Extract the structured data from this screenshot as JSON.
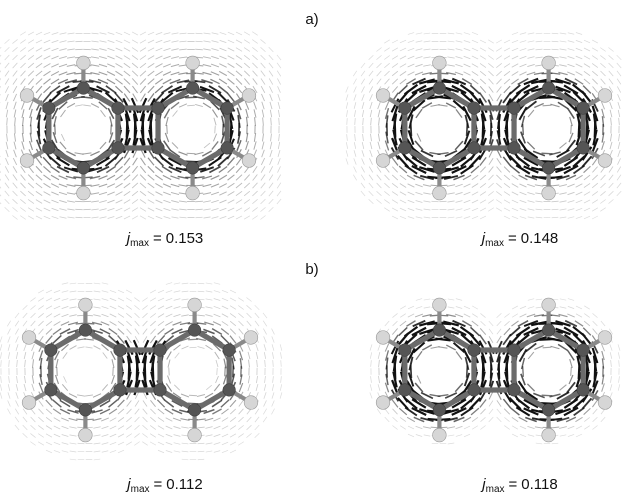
{
  "panels": [
    {
      "label": "a)",
      "items": [
        {
          "symbol": "j",
          "subscript": "max",
          "relation": "=",
          "value": 0.153
        },
        {
          "symbol": "j",
          "subscript": "max",
          "relation": "=",
          "value": 0.148
        }
      ]
    },
    {
      "label": "b)",
      "items": [
        {
          "symbol": "j",
          "subscript": "max",
          "relation": "=",
          "value": 0.112
        },
        {
          "symbol": "j",
          "subscript": "max",
          "relation": "=",
          "value": 0.118
        }
      ]
    }
  ]
}
